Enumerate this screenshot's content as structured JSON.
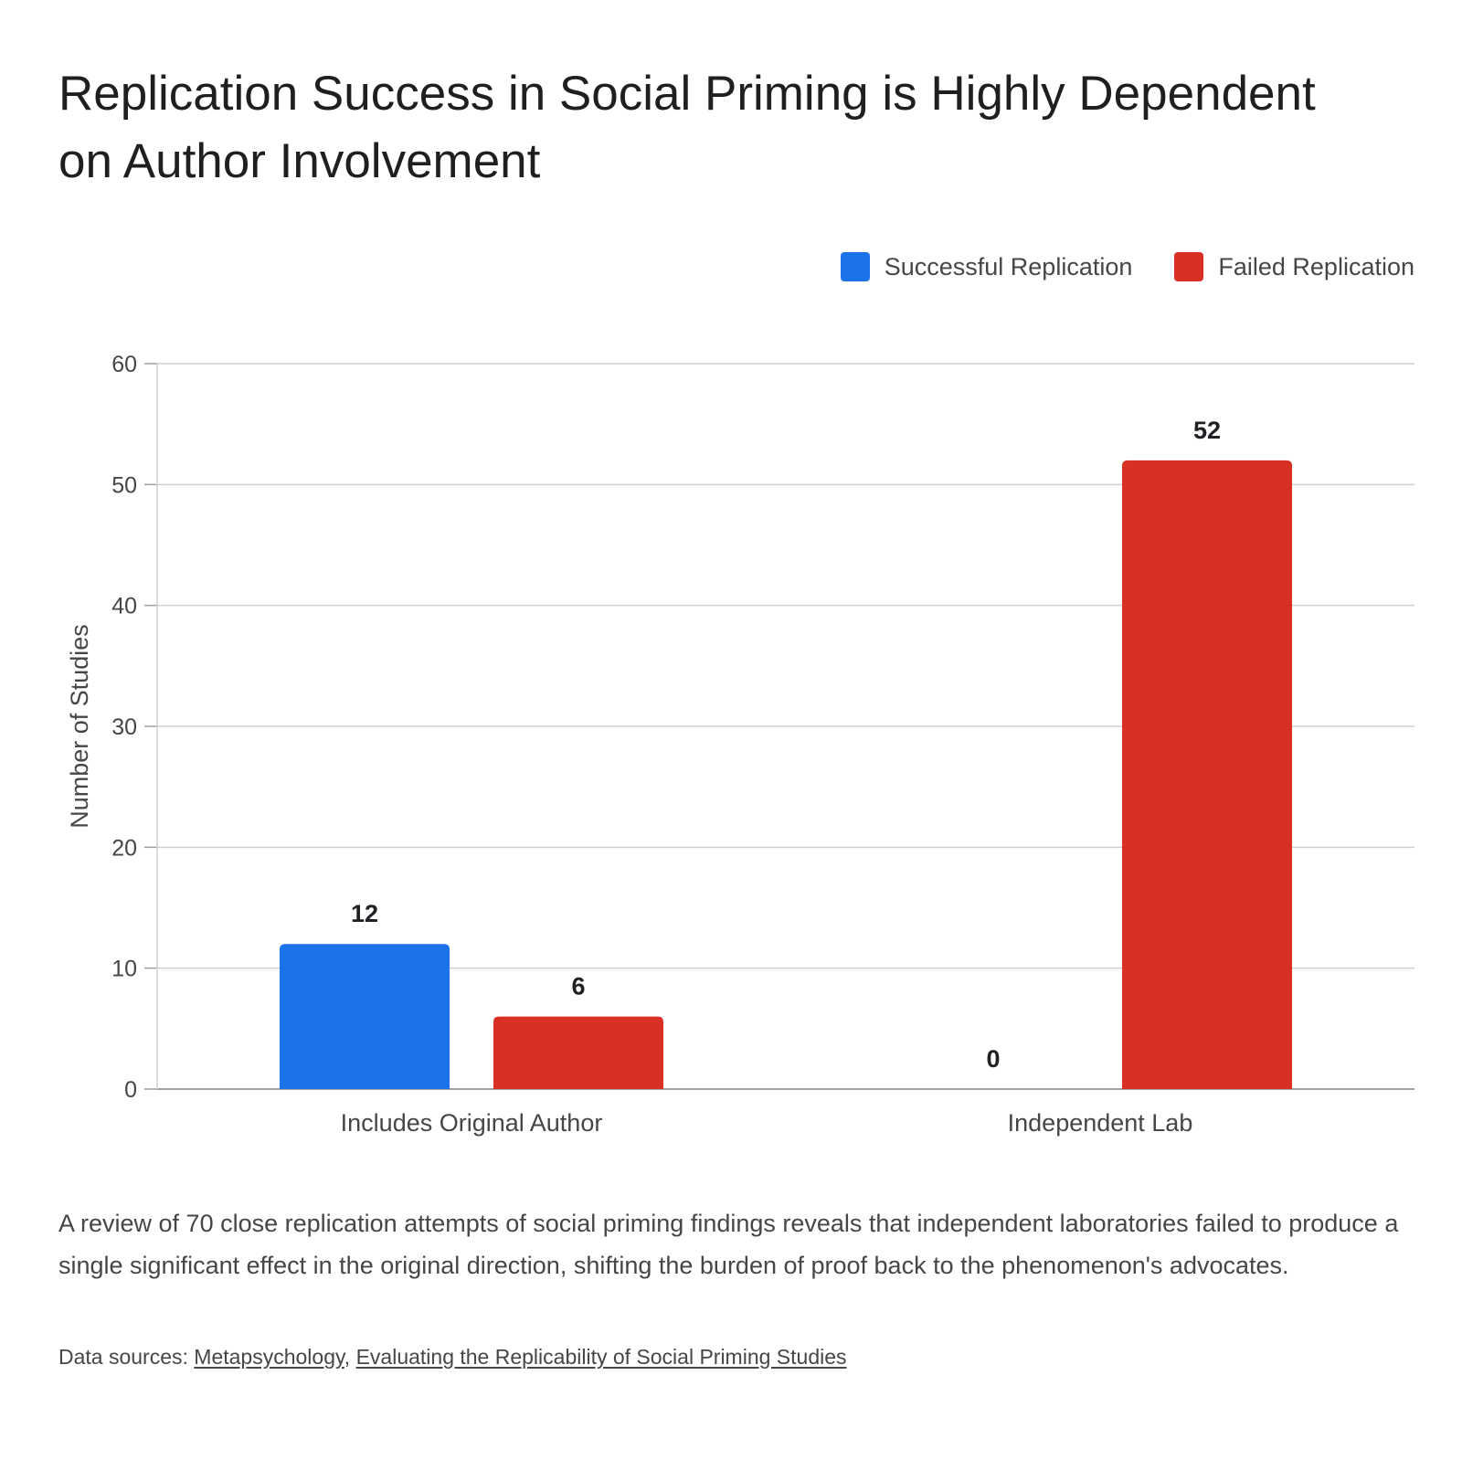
{
  "title": "Replication Success in Social Priming is Highly Dependent on Author Involvement",
  "legend": [
    {
      "label": "Successful Replication",
      "color": "#1a73e8"
    },
    {
      "label": "Failed Replication",
      "color": "#d93025"
    }
  ],
  "chart_data": {
    "type": "bar",
    "categories": [
      "Includes Original Author",
      "Independent Lab"
    ],
    "series": [
      {
        "name": "Successful Replication",
        "values": [
          12,
          0
        ],
        "color": "#1a73e8"
      },
      {
        "name": "Failed Replication",
        "values": [
          6,
          52
        ],
        "color": "#d93025"
      }
    ],
    "ylabel": "Number of Studies",
    "ylim": [
      0,
      60
    ],
    "yticks": [
      0,
      10,
      20,
      30,
      40,
      50,
      60
    ],
    "grid": true,
    "legend_position": "top-right",
    "data_labels": true
  },
  "description": "A review of 70 close replication attempts of social priming findings reveals that independent laboratories failed to produce a single significant effect in the original direction, shifting the burden of proof back to the phenomenon's advocates.",
  "sources": {
    "prefix": "Data sources: ",
    "links": [
      "Metapsychology",
      "Evaluating the Replicability of Social Priming Studies"
    ],
    "separator": ", "
  }
}
